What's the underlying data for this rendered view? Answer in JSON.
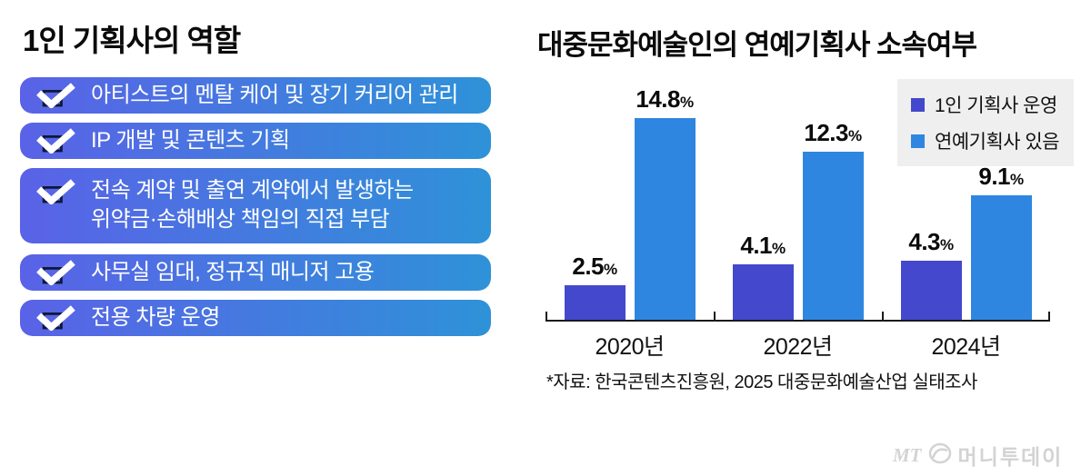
{
  "left_panel": {
    "title": "1인 기획사의 역할",
    "icon": "checkbox-check-icon",
    "bar_gradient": [
      "#5A62E7",
      "#2E92D8"
    ],
    "items": [
      "아티스트의 멘탈 케어 및 장기 커리어 관리",
      "IP 개발 및 콘텐츠 기획",
      "전속 계약 및 출연 계약에서 발생하는\n위약금·손해배상 책임의 직접 부담",
      "사무실 임대, 정규직 매니저 고용",
      "전용 차량 운영"
    ]
  },
  "chart_data": {
    "type": "bar",
    "title": "대중문화예술인의 연예기획사 소속여부",
    "categories": [
      "2020년",
      "2022년",
      "2024년"
    ],
    "series": [
      {
        "name": "1인 기획사 운영",
        "color": "#4448CC",
        "values": [
          2.5,
          4.1,
          4.3
        ]
      },
      {
        "name": "연예기획사 있음",
        "color": "#2F86E0",
        "values": [
          14.8,
          12.3,
          9.1
        ]
      }
    ],
    "unit": "%",
    "ylim": [
      0,
      16
    ],
    "grid": false,
    "legend_position": "top-right",
    "source_note": "*자료: 한국콘텐츠진흥원, 2025 대중문화예술산업 실태조사"
  },
  "watermark": {
    "abbr": "MT",
    "name": "머니투데이"
  }
}
